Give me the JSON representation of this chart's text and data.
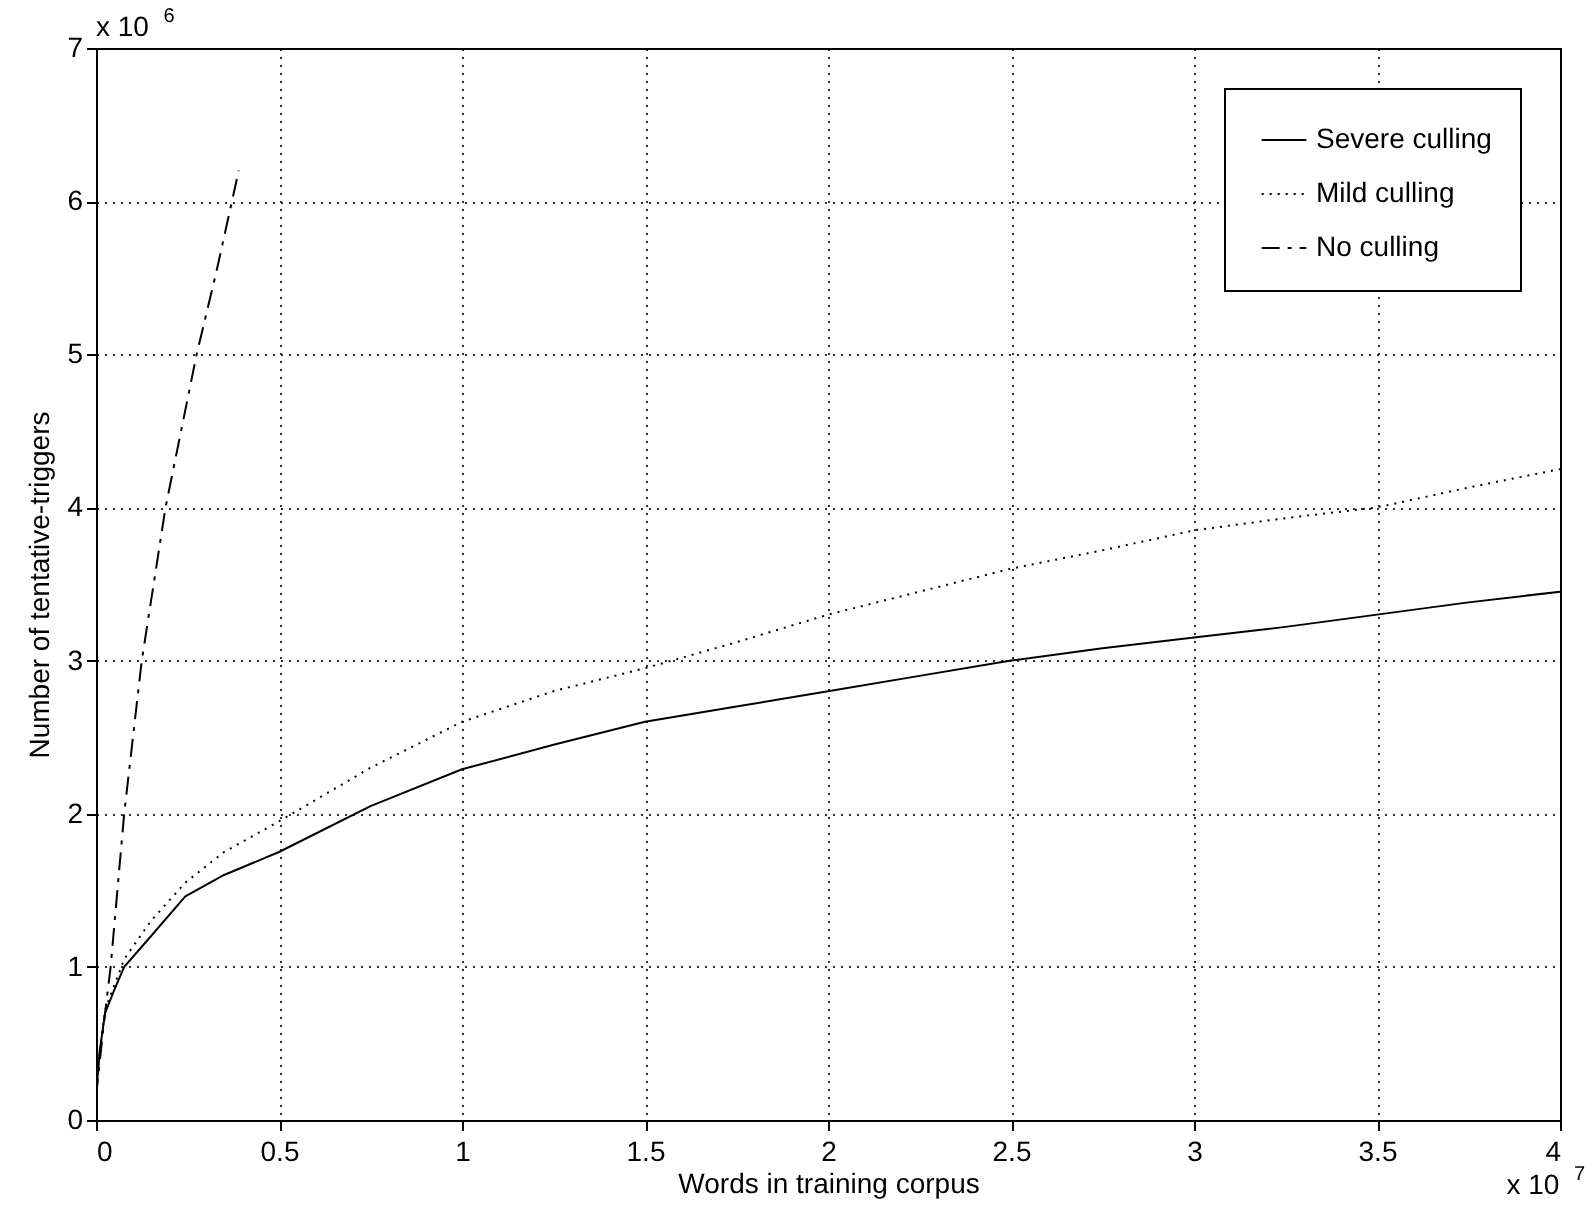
{
  "chart_data": {
    "type": "line",
    "xlabel": "Words in training corpus",
    "ylabel": "Number of tentative-triggers",
    "annotations": [
      "x 10$^{6}$",
      "x 10$^{7}$"
    ],
    "xlim": [
      0,
      4
    ],
    "xticks": [
      0,
      0.5,
      1,
      1.5,
      2,
      2.5,
      3,
      3.5,
      4
    ],
    "ylim": [
      0,
      7
    ],
    "yticks": [
      0,
      1,
      2,
      3,
      4,
      5,
      6,
      7
    ],
    "grid": true,
    "legend": "top right",
    "series": [
      {
        "name": "Severe culling",
        "color": "#000000",
        "line_style": "solid",
        "x": [
          0,
          0.01,
          0.025,
          0.05,
          0.077,
          0.15,
          0.244,
          0.35,
          0.5,
          0.75,
          1,
          1.25,
          1.5,
          1.75,
          2,
          2.25,
          2.5,
          2.75,
          3,
          3.25,
          3.5,
          3.75,
          4
        ],
        "values": [
          0.15,
          0.45,
          0.7,
          0.85,
          1.0,
          1.2,
          1.46,
          1.6,
          1.75,
          2.05,
          2.29,
          2.45,
          2.6,
          2.7,
          2.8,
          2.9,
          3.0,
          3.08,
          3.15,
          3.22,
          3.3,
          3.38,
          3.45
        ]
      },
      {
        "name": "Mild culling",
        "color": "#000000",
        "line_style": "dotted",
        "x": [
          0,
          0.01,
          0.025,
          0.05,
          0.077,
          0.15,
          0.244,
          0.35,
          0.5,
          0.75,
          1,
          1.25,
          1.5,
          1.75,
          2,
          2.25,
          2.5,
          2.75,
          3,
          3.25,
          3.5,
          3.75,
          4
        ],
        "values": [
          0.15,
          0.45,
          0.72,
          0.88,
          1.05,
          1.3,
          1.55,
          1.75,
          1.95,
          2.3,
          2.6,
          2.8,
          2.95,
          3.12,
          3.3,
          3.45,
          3.6,
          3.72,
          3.85,
          3.93,
          4.0,
          4.13,
          4.25
        ]
      },
      {
        "name": "No culling",
        "color": "#000000",
        "line_style": "dashed",
        "x": [
          0,
          0.02,
          0.04,
          0.077,
          0.125,
          0.19,
          0.275,
          0.33,
          0.39
        ],
        "values": [
          0.15,
          0.6,
          1.0,
          2.0,
          3.0,
          4.0,
          5.0,
          5.55,
          6.2
        ]
      }
    ]
  }
}
